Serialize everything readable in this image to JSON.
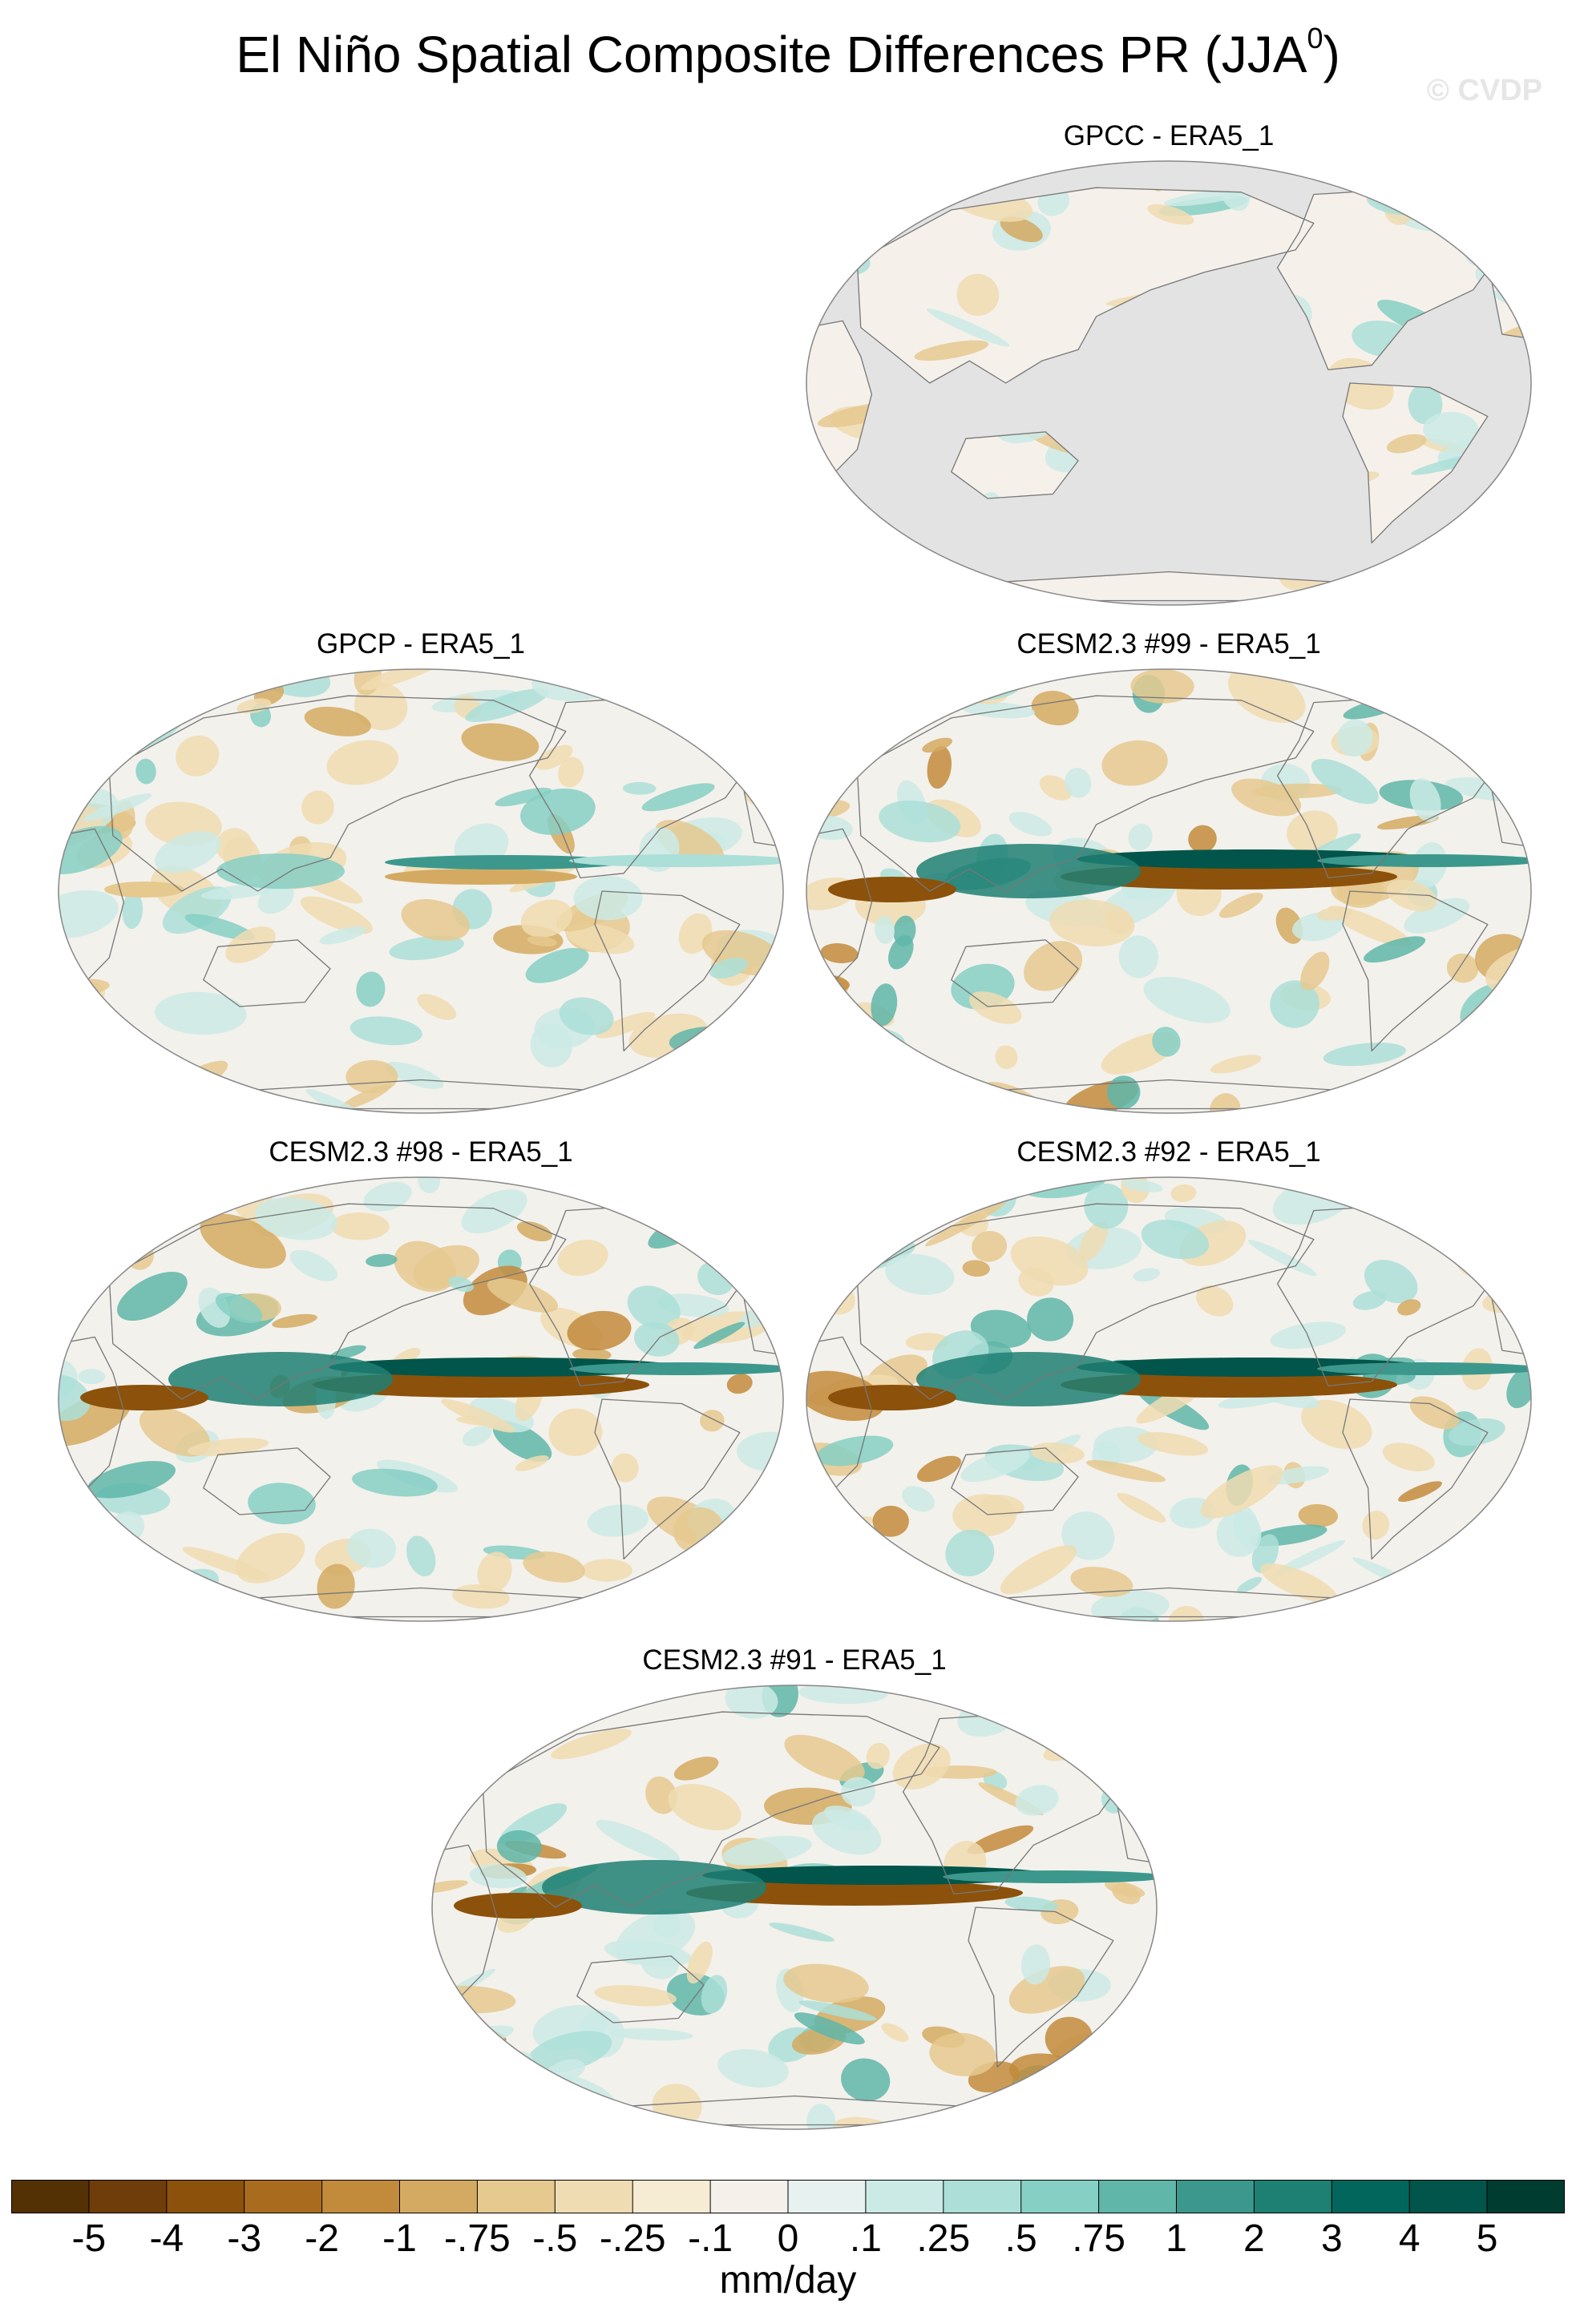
{
  "title": {
    "text": "El Niño Spatial Composite Differences PR (JJA",
    "superscript": "0",
    "close": ")"
  },
  "watermark": "© CVDP",
  "panels": [
    {
      "title": "GPCC - ERA5_1",
      "type": "land_only",
      "intensity": 0.4
    },
    {
      "title": "GPCP - ERA5_1",
      "type": "ocean",
      "intensity": 0.55
    },
    {
      "title": "CESM2.3 #99 - ERA5_1",
      "type": "ocean",
      "intensity": 1.0
    },
    {
      "title": "CESM2.3 #98 - ERA5_1",
      "type": "ocean",
      "intensity": 1.0
    },
    {
      "title": "CESM2.3 #92 - ERA5_1",
      "type": "ocean",
      "intensity": 1.0
    },
    {
      "title": "CESM2.3 #91 - ERA5_1",
      "type": "ocean",
      "intensity": 1.0
    }
  ],
  "legend": {
    "ticks": [
      "-5",
      "-4",
      "-3",
      "-2",
      "-1",
      "-.75",
      "-.5",
      "-.25",
      "-.1",
      "0",
      ".1",
      ".25",
      ".5",
      ".75",
      "1",
      "2",
      "3",
      "4",
      "5"
    ],
    "colors": [
      "#543005",
      "#6f3d0a",
      "#8c510a",
      "#a96c1f",
      "#c28b3c",
      "#d4aa62",
      "#e5c98f",
      "#f0dcb2",
      "#f6ebd3",
      "#f5f1ea",
      "#e7f2f0",
      "#cbeae5",
      "#abdfd8",
      "#86cfc4",
      "#5fb6a9",
      "#3c988c",
      "#1e7f73",
      "#03665c",
      "#01554a",
      "#003c30"
    ],
    "units": "mm/day"
  }
}
